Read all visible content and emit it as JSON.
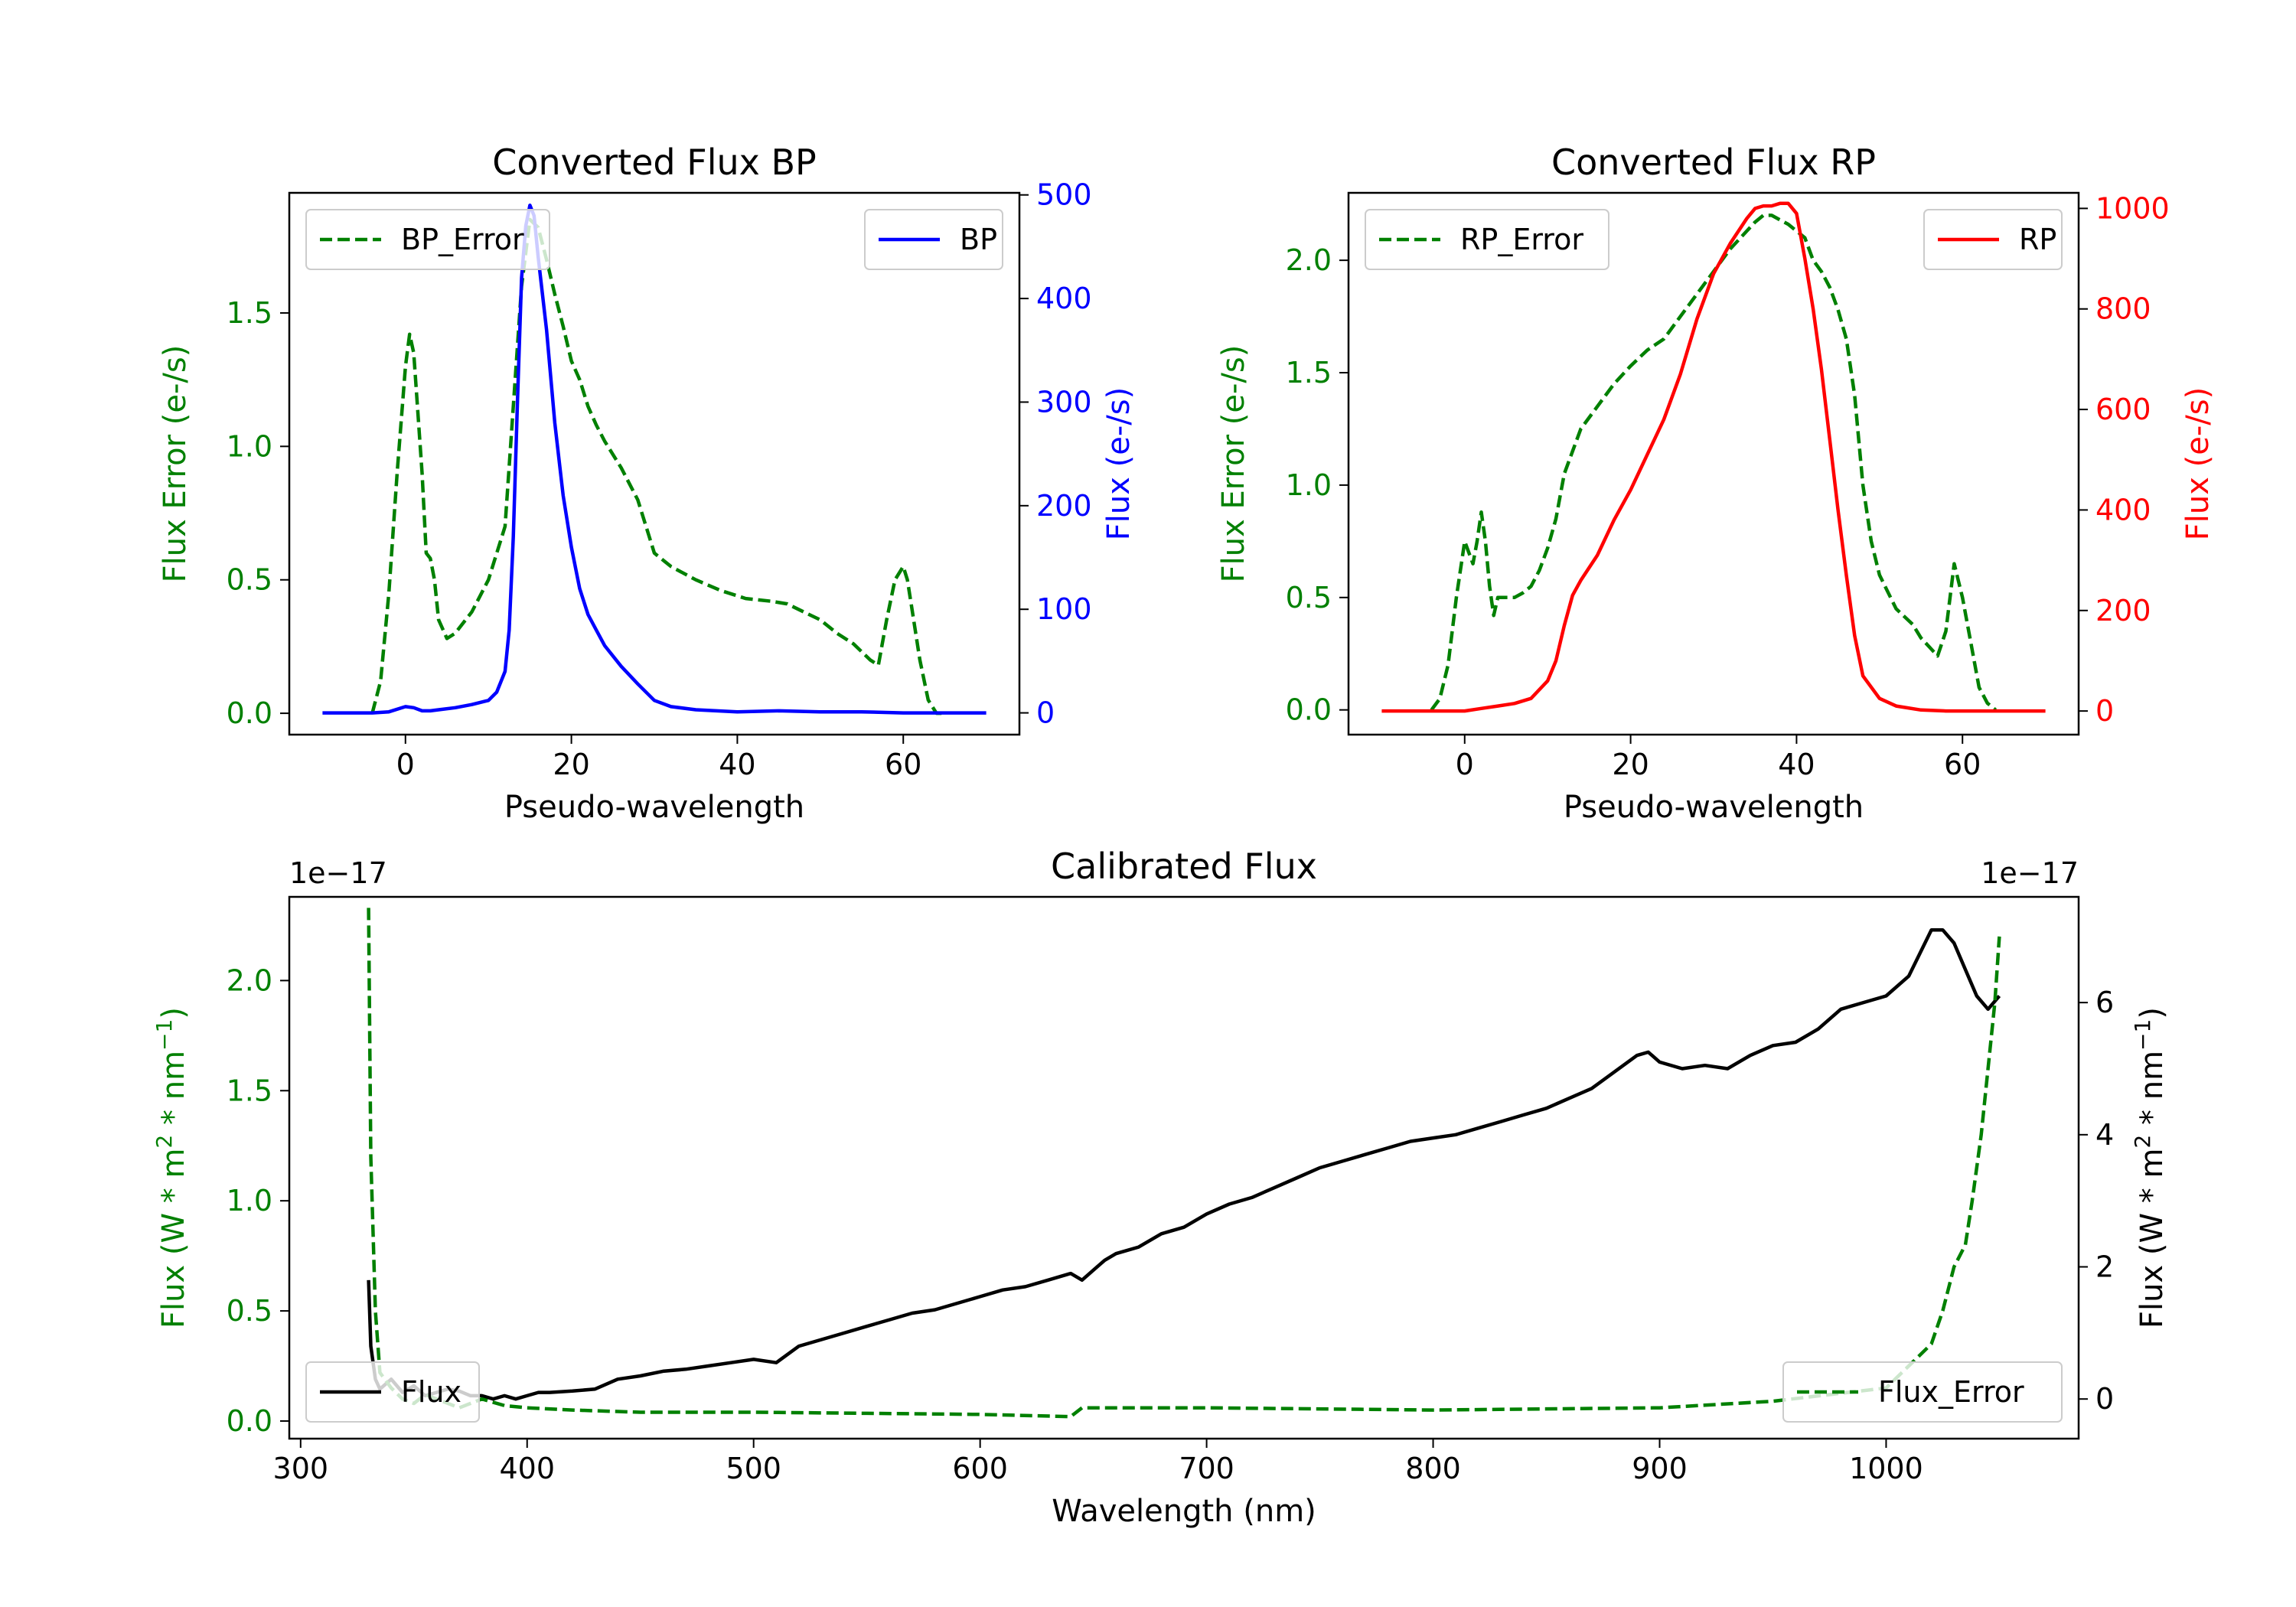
{
  "chart_data": [
    {
      "type": "line",
      "title": "Converted Flux BP",
      "xlabel": "Pseudo-wavelength",
      "xlim": [
        -14,
        74
      ],
      "x_ticks": [
        0,
        20,
        40,
        60
      ],
      "left_axis": {
        "label": "Flux Error (e-/s)",
        "color": "#008000",
        "ylim": [
          -0.08,
          1.95
        ],
        "ticks": [
          0.0,
          0.5,
          1.0,
          1.5
        ]
      },
      "right_axis": {
        "label": "Flux (e-/s)",
        "color": "#0000ff",
        "ylim": [
          -21,
          502
        ],
        "ticks": [
          0,
          100,
          200,
          300,
          400,
          500
        ]
      },
      "series": [
        {
          "name": "BP_Error",
          "axis": "left",
          "color": "#008000",
          "dash": "dashed",
          "x": [
            -4,
            -3,
            -2,
            -1,
            0,
            0.5,
            1,
            2,
            2.5,
            3,
            3.5,
            4,
            5,
            6,
            8,
            10,
            12,
            14,
            15,
            16,
            17,
            18,
            19,
            20,
            21,
            22,
            23,
            24,
            26,
            28,
            30,
            32,
            35,
            38,
            41,
            44,
            46,
            48,
            50,
            52,
            54,
            56,
            57,
            58,
            59,
            60,
            60.5,
            61,
            62,
            63,
            64,
            65
          ],
          "y": [
            0.0,
            0.12,
            0.45,
            0.9,
            1.3,
            1.42,
            1.35,
            0.9,
            0.6,
            0.58,
            0.5,
            0.35,
            0.28,
            0.3,
            0.38,
            0.5,
            0.7,
            1.6,
            1.85,
            1.82,
            1.7,
            1.57,
            1.45,
            1.32,
            1.25,
            1.15,
            1.08,
            1.02,
            0.92,
            0.8,
            0.6,
            0.55,
            0.5,
            0.46,
            0.43,
            0.42,
            0.41,
            0.38,
            0.35,
            0.3,
            0.26,
            0.2,
            0.18,
            0.35,
            0.5,
            0.55,
            0.5,
            0.4,
            0.2,
            0.05,
            0.0,
            0.0
          ]
        },
        {
          "name": "BP",
          "axis": "right",
          "color": "#0000ff",
          "dash": "solid",
          "x": [
            -10,
            -8,
            -6,
            -4,
            -2,
            0,
            1,
            2,
            3,
            4,
            6,
            8,
            10,
            11,
            12,
            12.5,
            13,
            13.5,
            14,
            14.5,
            15,
            15.5,
            16,
            17,
            18,
            19,
            20,
            21,
            22,
            23,
            24,
            26,
            28,
            30,
            32,
            35,
            40,
            45,
            50,
            55,
            60,
            65,
            70
          ],
          "y": [
            0,
            0,
            0,
            0,
            1,
            6,
            5,
            2,
            2,
            3,
            5,
            8,
            12,
            20,
            40,
            80,
            170,
            300,
            420,
            470,
            490,
            480,
            440,
            370,
            280,
            210,
            160,
            120,
            95,
            80,
            65,
            45,
            28,
            12,
            6,
            3,
            1,
            2,
            1,
            1,
            0,
            0,
            0
          ]
        }
      ],
      "legend": [
        {
          "label": "BP_Error",
          "position": "upper-left"
        },
        {
          "label": "BP",
          "position": "upper-right"
        }
      ]
    },
    {
      "type": "line",
      "title": "Converted Flux RP",
      "xlabel": "Pseudo-wavelength",
      "xlim": [
        -14,
        74
      ],
      "x_ticks": [
        0,
        20,
        40,
        60
      ],
      "left_axis": {
        "label": "Flux Error (e-/s)",
        "color": "#008000",
        "ylim": [
          -0.11,
          2.3
        ],
        "ticks": [
          0.0,
          0.5,
          1.0,
          1.5,
          2.0
        ]
      },
      "right_axis": {
        "label": "Flux (e-/s)",
        "color": "#ff0000",
        "ylim": [
          -47,
          1031
        ],
        "ticks": [
          0,
          200,
          400,
          600,
          800,
          1000
        ]
      },
      "series": [
        {
          "name": "RP_Error",
          "axis": "left",
          "color": "#008000",
          "dash": "dashed",
          "x": [
            -4,
            -3,
            -2,
            -1,
            0,
            1,
            1.5,
            2,
            2.5,
            3,
            3.5,
            4,
            5,
            6,
            7,
            8,
            9,
            10,
            11,
            12,
            13,
            14,
            16,
            18,
            20,
            22,
            24,
            26,
            28,
            30,
            32,
            34,
            35,
            36,
            37,
            38,
            39,
            40,
            41,
            42,
            43,
            44,
            45,
            46,
            47,
            48,
            49,
            50,
            52,
            54,
            55,
            56,
            57,
            58,
            59,
            60,
            61,
            62,
            63,
            64
          ],
          "y": [
            0.0,
            0.05,
            0.2,
            0.5,
            0.75,
            0.65,
            0.75,
            0.88,
            0.75,
            0.55,
            0.42,
            0.5,
            0.5,
            0.5,
            0.52,
            0.55,
            0.62,
            0.72,
            0.85,
            1.05,
            1.15,
            1.25,
            1.35,
            1.45,
            1.53,
            1.6,
            1.65,
            1.75,
            1.85,
            1.95,
            2.05,
            2.13,
            2.17,
            2.2,
            2.2,
            2.18,
            2.16,
            2.13,
            2.1,
            2.0,
            1.95,
            1.88,
            1.78,
            1.65,
            1.4,
            1.0,
            0.75,
            0.6,
            0.45,
            0.38,
            0.32,
            0.28,
            0.24,
            0.35,
            0.65,
            0.5,
            0.3,
            0.1,
            0.03,
            0.0
          ]
        },
        {
          "name": "RP",
          "axis": "right",
          "color": "#ff0000",
          "dash": "solid",
          "x": [
            -10,
            -5,
            0,
            2,
            4,
            6,
            8,
            10,
            11,
            12,
            13,
            14,
            16,
            18,
            20,
            22,
            24,
            26,
            28,
            30,
            32,
            34,
            35,
            36,
            37,
            38,
            39,
            40,
            41,
            42,
            43,
            44,
            45,
            46,
            47,
            48,
            50,
            52,
            55,
            58,
            62,
            66,
            70
          ],
          "y": [
            0,
            0,
            0,
            5,
            10,
            15,
            25,
            60,
            100,
            170,
            230,
            260,
            310,
            380,
            440,
            510,
            580,
            670,
            780,
            870,
            930,
            980,
            1000,
            1005,
            1005,
            1010,
            1010,
            990,
            900,
            800,
            680,
            540,
            400,
            270,
            150,
            70,
            25,
            10,
            2,
            0,
            0,
            0,
            0
          ]
        }
      ],
      "legend": [
        {
          "label": "RP_Error",
          "position": "upper-left"
        },
        {
          "label": "RP",
          "position": "upper-right"
        }
      ]
    },
    {
      "type": "line",
      "title": "Calibrated Flux",
      "xlabel": "Wavelength (nm)",
      "xlim": [
        295,
        1085
      ],
      "x_ticks": [
        300,
        400,
        500,
        600,
        700,
        800,
        900,
        1000
      ],
      "left_axis": {
        "label_parts": [
          "Flux (W * m",
          "2",
          " * nm",
          "−1",
          ")"
        ],
        "color": "#008000",
        "ylim": [
          -0.08,
          2.38
        ],
        "ticks": [
          0.0,
          0.5,
          1.0,
          1.5,
          2.0
        ],
        "offset_text": "1e−17"
      },
      "right_axis": {
        "label_parts": [
          "Flux (W * m",
          "2",
          " * nm",
          "−1",
          ")"
        ],
        "color": "#000000",
        "ylim": [
          -0.6,
          7.6
        ],
        "ticks": [
          0,
          2,
          4,
          6
        ],
        "offset_text": "1e−17"
      },
      "series": [
        {
          "name": "Flux",
          "axis": "right",
          "color": "#000000",
          "dash": "solid",
          "x": [
            330,
            331,
            333,
            335,
            340,
            345,
            350,
            355,
            360,
            365,
            370,
            375,
            380,
            385,
            390,
            395,
            400,
            405,
            410,
            420,
            430,
            440,
            450,
            460,
            470,
            480,
            490,
            500,
            510,
            520,
            530,
            540,
            550,
            560,
            570,
            580,
            590,
            600,
            610,
            620,
            630,
            640,
            645,
            650,
            655,
            660,
            670,
            680,
            690,
            700,
            710,
            720,
            730,
            740,
            750,
            760,
            770,
            780,
            790,
            800,
            810,
            820,
            830,
            840,
            850,
            860,
            870,
            880,
            890,
            895,
            900,
            910,
            920,
            930,
            940,
            950,
            960,
            970,
            980,
            990,
            1000,
            1010,
            1020,
            1025,
            1030,
            1035,
            1040,
            1045,
            1050
          ],
          "y": [
            1.8,
            0.8,
            0.3,
            0.15,
            0.3,
            0.1,
            0.2,
            0.05,
            0.1,
            0.15,
            0.12,
            0.05,
            0.05,
            0.0,
            0.05,
            0.0,
            0.05,
            0.1,
            0.1,
            0.12,
            0.15,
            0.3,
            0.35,
            0.42,
            0.45,
            0.5,
            0.55,
            0.6,
            0.55,
            0.8,
            0.9,
            1.0,
            1.1,
            1.2,
            1.3,
            1.35,
            1.45,
            1.55,
            1.65,
            1.7,
            1.8,
            1.9,
            1.8,
            1.95,
            2.1,
            2.2,
            2.3,
            2.5,
            2.6,
            2.8,
            2.95,
            3.05,
            3.2,
            3.35,
            3.5,
            3.6,
            3.7,
            3.8,
            3.9,
            3.95,
            4.0,
            4.1,
            4.2,
            4.3,
            4.4,
            4.55,
            4.7,
            4.95,
            5.2,
            5.25,
            5.1,
            5.0,
            5.05,
            5.0,
            5.2,
            5.35,
            5.4,
            5.6,
            5.9,
            6.0,
            6.1,
            6.4,
            7.1,
            7.1,
            6.9,
            6.5,
            6.1,
            5.9,
            6.1
          ]
        },
        {
          "name": "Flux_Error",
          "axis": "left",
          "color": "#008000",
          "dash": "dashed",
          "x": [
            330,
            331,
            333,
            335,
            340,
            345,
            350,
            355,
            360,
            370,
            380,
            390,
            400,
            420,
            450,
            500,
            550,
            600,
            640,
            645,
            700,
            800,
            900,
            950,
            1000,
            1010,
            1020,
            1025,
            1030,
            1035,
            1038,
            1042,
            1045,
            1048,
            1050
          ],
          "y": [
            2.33,
            1.2,
            0.5,
            0.22,
            0.15,
            0.1,
            0.08,
            0.12,
            0.1,
            0.06,
            0.1,
            0.07,
            0.06,
            0.05,
            0.04,
            0.04,
            0.035,
            0.03,
            0.02,
            0.06,
            0.06,
            0.05,
            0.06,
            0.09,
            0.15,
            0.25,
            0.35,
            0.5,
            0.7,
            0.8,
            1.0,
            1.3,
            1.6,
            1.9,
            2.2
          ]
        }
      ],
      "legend": [
        {
          "label": "Flux",
          "position": "lower-left"
        },
        {
          "label": "Flux_Error",
          "position": "lower-right"
        }
      ]
    }
  ]
}
